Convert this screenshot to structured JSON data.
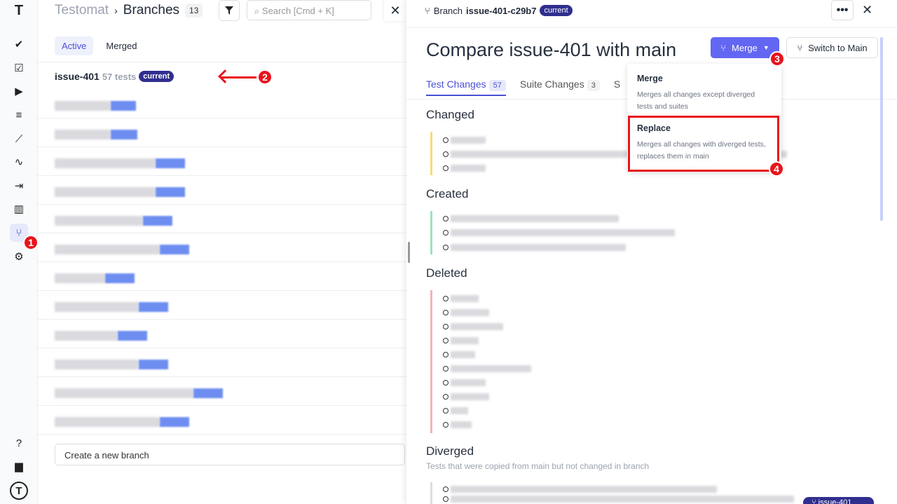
{
  "sidebar": {
    "icons": [
      "logo-icon",
      "check-icon",
      "clipboard-check-icon",
      "play-icon",
      "list-check-icon",
      "steps-icon",
      "pulse-icon",
      "import-icon",
      "chart-icon",
      "branch-icon",
      "gear-icon"
    ],
    "bottom": [
      "help-icon",
      "folder-icon",
      "profile-icon"
    ],
    "glyphs": [
      "T",
      "✔",
      "☑",
      "▶",
      "≡",
      "⟋",
      "∿",
      "⇥",
      "▥",
      "⑂",
      "⚙"
    ],
    "bottom_glyphs": [
      "?",
      "▆",
      "T"
    ]
  },
  "left": {
    "app": "Testomat",
    "separator": "›",
    "title": "Branches",
    "count": "13",
    "search_placeholder": "Search [Cmd + K]",
    "tabs": [
      "Active",
      "Merged"
    ],
    "current_branch": {
      "name": "issue-401",
      "tests": "57 tests",
      "badge": "current"
    },
    "create_placeholder": "Create a new branch"
  },
  "right": {
    "branch_label": "Branch",
    "branch_name": "issue-401-c29b7",
    "branch_badge": "current",
    "more": "•••",
    "title": "Compare issue-401 with main",
    "merge_button": "Merge",
    "switch_button": "Switch to Main",
    "tabs": [
      {
        "label": "Test Changes",
        "count": "57"
      },
      {
        "label": "Suite Changes",
        "count": "3"
      },
      {
        "label": "S",
        "count": ""
      }
    ],
    "sections": {
      "changed": "Changed",
      "created": "Created",
      "deleted": "Deleted",
      "diverged": "Diverged",
      "diverged_sub": "Tests that were copied from main but not changed in branch"
    },
    "floating_badge": "issue-401"
  },
  "dropdown": {
    "options": [
      {
        "title": "Merge",
        "desc": "Merges all changes except diverged tests and suites"
      },
      {
        "title": "Replace",
        "desc": "Merges all changes with diverged tests, replaces them in main"
      }
    ]
  },
  "annotations": [
    "1",
    "2",
    "3",
    "4"
  ],
  "colors": {
    "accent": "#6366f1",
    "badge": "#302f8f",
    "annotation": "#e8141c",
    "changed": "#f5dc7a",
    "created": "#9be3bd",
    "deleted": "#f5b3b8"
  }
}
